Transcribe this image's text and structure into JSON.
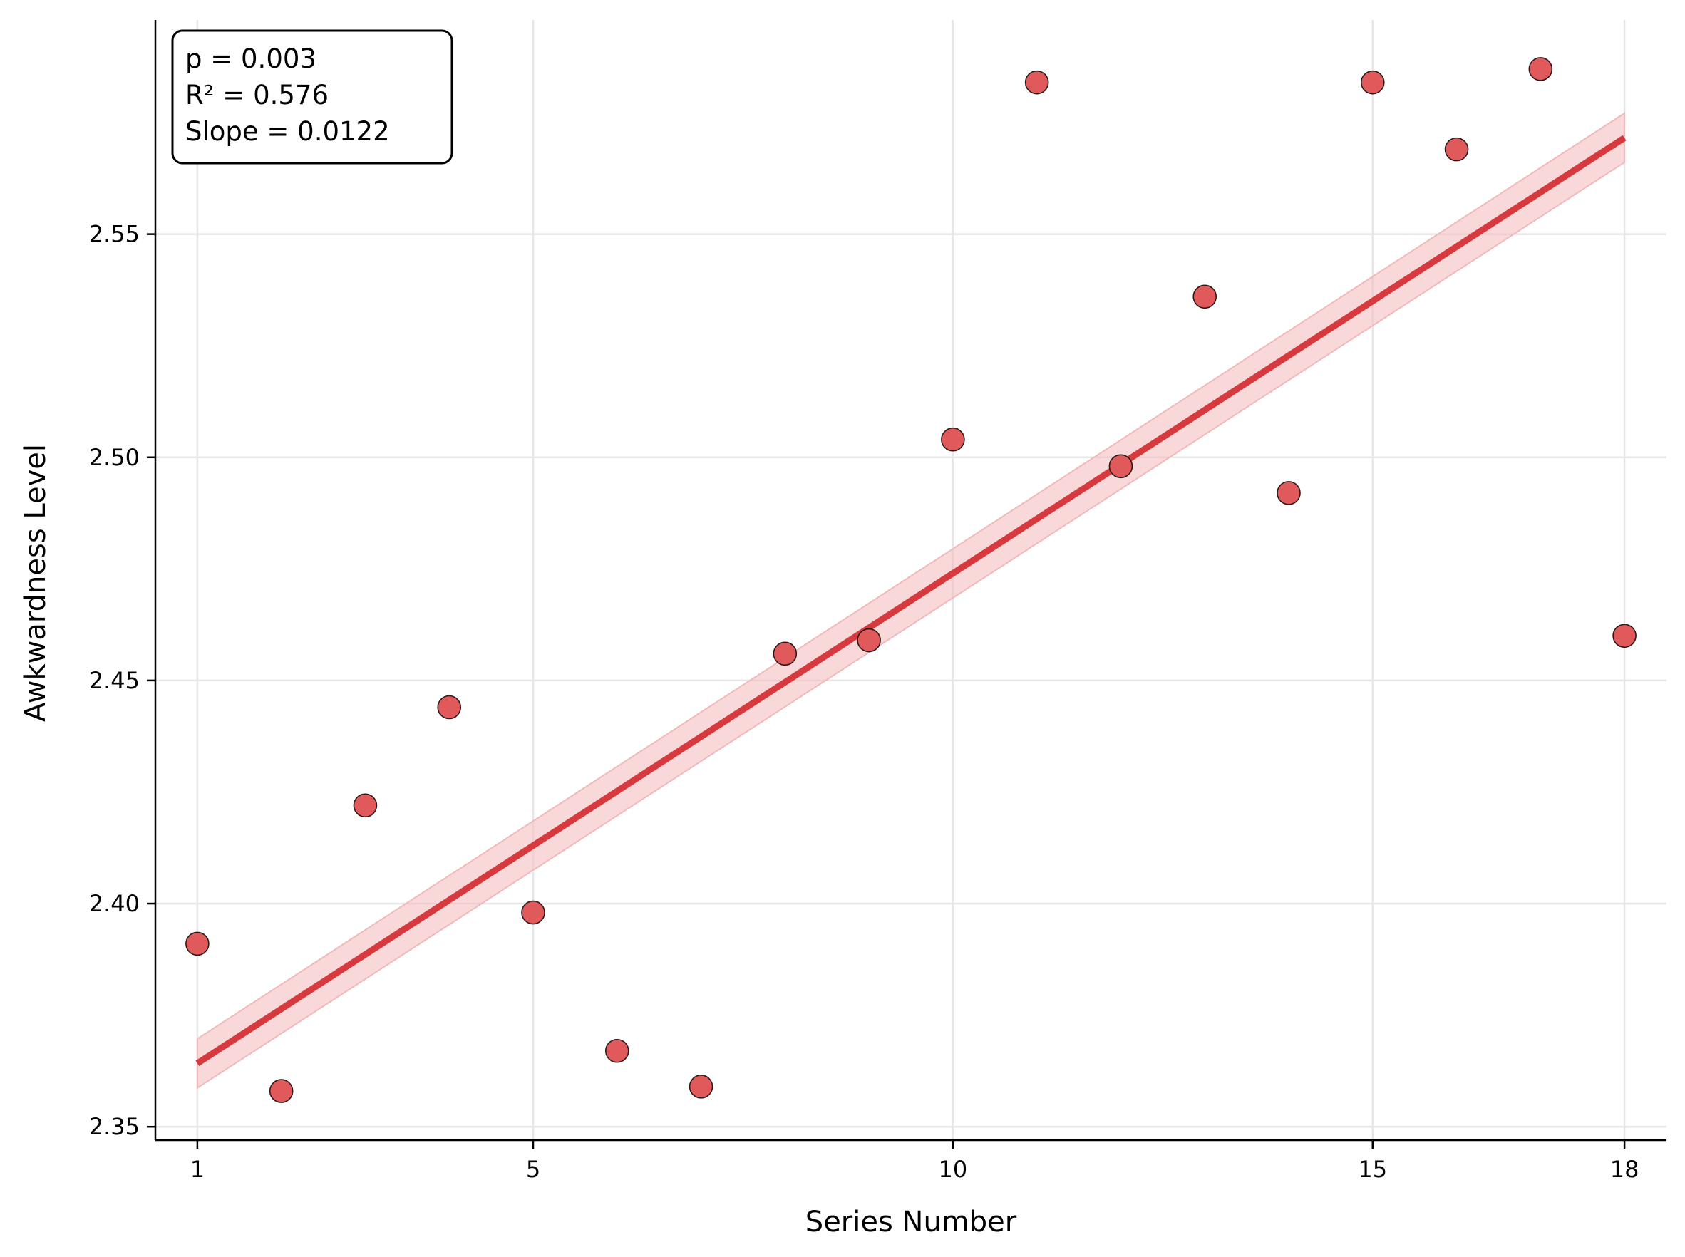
{
  "chart_data": {
    "type": "scatter",
    "xlabel": "Series Number",
    "ylabel": "Awkwardness Level",
    "xlim": [
      0.5,
      18.5
    ],
    "ylim": [
      2.347,
      2.598
    ],
    "xticks": [
      1,
      5,
      10,
      15,
      18
    ],
    "yticks": [
      2.35,
      2.4,
      2.45,
      2.5,
      2.55
    ],
    "ytick_labels": [
      "2.35",
      "2.40",
      "2.45",
      "2.50",
      "2.55"
    ],
    "grid": true,
    "points": [
      {
        "x": 1,
        "y": 2.391
      },
      {
        "x": 2,
        "y": 2.358
      },
      {
        "x": 3,
        "y": 2.422
      },
      {
        "x": 4,
        "y": 2.444
      },
      {
        "x": 5,
        "y": 2.398
      },
      {
        "x": 6,
        "y": 2.367
      },
      {
        "x": 7,
        "y": 2.359
      },
      {
        "x": 8,
        "y": 2.456
      },
      {
        "x": 9,
        "y": 2.459
      },
      {
        "x": 10,
        "y": 2.504
      },
      {
        "x": 11,
        "y": 2.584
      },
      {
        "x": 12,
        "y": 2.498
      },
      {
        "x": 13,
        "y": 2.536
      },
      {
        "x": 14,
        "y": 2.492
      },
      {
        "x": 15,
        "y": 2.584
      },
      {
        "x": 16,
        "y": 2.569
      },
      {
        "x": 17,
        "y": 2.587
      },
      {
        "x": 18,
        "y": 2.46
      }
    ],
    "fit_line": {
      "x_start": 1,
      "y_start": 2.3642,
      "x_end": 18,
      "y_end": 2.5716,
      "ci_halfwidth": 0.0055
    },
    "annotation": {
      "p_text": "p = 0.003",
      "r2_text": "R² = 0.576",
      "slope_text": "Slope = 0.0122"
    },
    "colors": {
      "point_fill": "#e05a5c",
      "point_edge": "#2a1a1a",
      "fit_line": "#d63a3e",
      "ci_band": "#f2b8ba",
      "grid": "#e6e6e6"
    }
  }
}
